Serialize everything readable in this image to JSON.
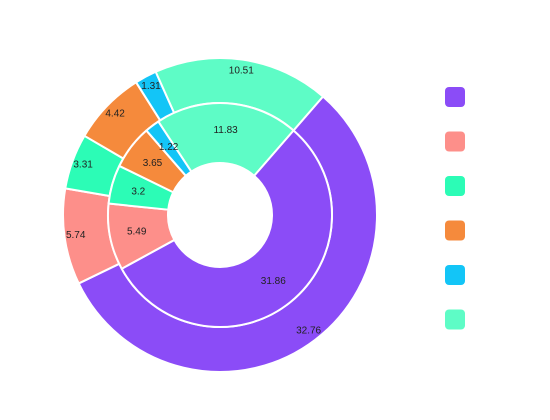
{
  "chart_data": {
    "type": "pie",
    "variant": "nested-donut",
    "legend_placement": "right",
    "series": [
      {
        "ring": "inner",
        "values": [
          31.86,
          5.49,
          3.2,
          3.65,
          1.22,
          11.83
        ],
        "labels": [
          "31.86",
          "5.49",
          "3.2",
          "3.65",
          "1.22",
          "11.83"
        ]
      },
      {
        "ring": "outer",
        "values": [
          32.76,
          5.74,
          3.31,
          4.42,
          1.31,
          10.51
        ],
        "labels": [
          "32.76",
          "5.74",
          "3.31",
          "4.42",
          "1.31",
          "10.51"
        ]
      }
    ],
    "colors": [
      "#8b4cf7",
      "#fd8f8a",
      "#2cfcb6",
      "#f58a3c",
      "#13c5f7",
      "#5efcc6"
    ]
  }
}
